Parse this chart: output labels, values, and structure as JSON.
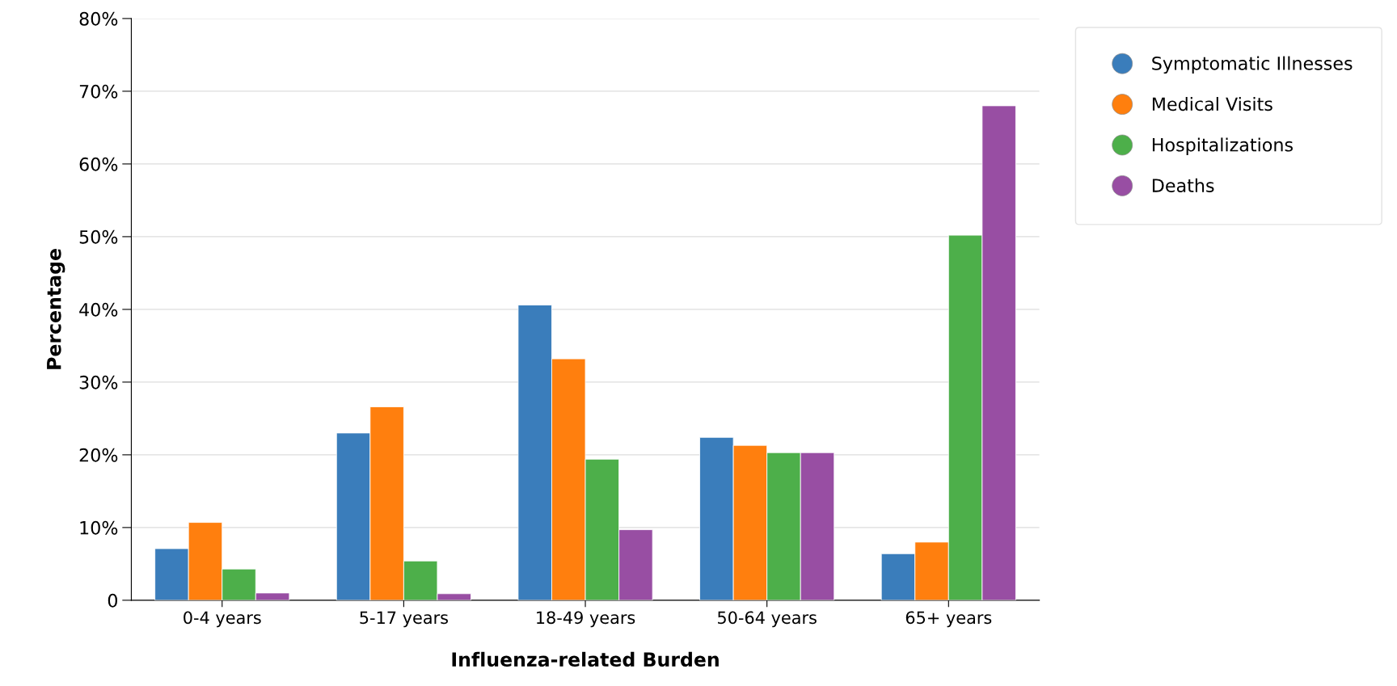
{
  "chart_data": {
    "type": "bar",
    "xlabel": "Influenza-related Burden",
    "ylabel": "Percentage",
    "categories": [
      "0-4 years",
      "5-17 years",
      "18-49 years",
      "50-64 years",
      "65+ years"
    ],
    "series": [
      {
        "name": "Symptomatic Illnesses",
        "color": "#3a7dbb",
        "values": [
          7.1,
          23.0,
          40.6,
          22.4,
          6.4
        ]
      },
      {
        "name": "Medical Visits",
        "color": "#ff7f0e",
        "values": [
          10.7,
          26.6,
          33.2,
          21.3,
          8.0
        ]
      },
      {
        "name": "Hospitalizations",
        "color": "#4daf4a",
        "values": [
          4.3,
          5.4,
          19.4,
          20.3,
          50.2
        ]
      },
      {
        "name": "Deaths",
        "color": "#984ea3",
        "values": [
          1.0,
          0.9,
          9.7,
          20.3,
          68.0
        ]
      }
    ],
    "ylim": [
      0,
      80
    ],
    "yticks": [
      0,
      {
        "value": 10,
        "label": "10%"
      },
      {
        "value": 20,
        "label": "20%"
      },
      {
        "value": 30,
        "label": "30%"
      },
      {
        "value": 40,
        "label": "40%"
      },
      {
        "value": 50,
        "label": "50%"
      },
      {
        "value": 60,
        "label": "60%"
      },
      {
        "value": 70,
        "label": "70%"
      },
      {
        "value": 80,
        "label": "80%"
      }
    ],
    "grid": "y",
    "legend": "top right"
  }
}
